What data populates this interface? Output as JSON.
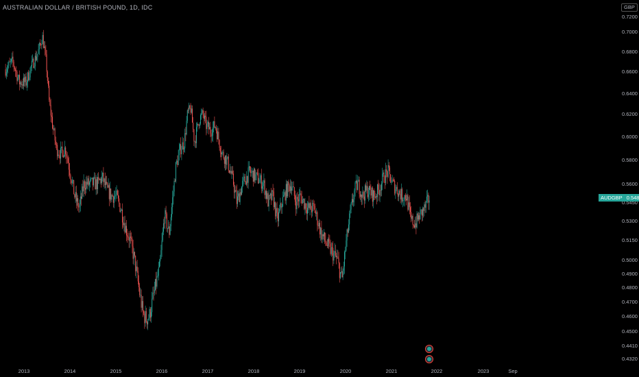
{
  "title": "AUSTRALIAN DOLLAR / BRITISH POUND, 1D, IDC",
  "currency_label": "GBP",
  "price_tag": {
    "symbol": "AUDGBP",
    "price": "0.5489"
  },
  "colors": {
    "up": "#26a69a",
    "down": "#ef5350",
    "background": "#000000",
    "axis_text": "#b2b5be",
    "tag_bg": "#26a69a"
  },
  "event_markers": [
    {
      "icon": "earnings-marker-icon"
    },
    {
      "icon": "dividend-marker-icon"
    }
  ],
  "chart_data": {
    "type": "candlestick",
    "title": "AUSTRALIAN DOLLAR / BRITISH POUND, 1D, IDC",
    "y_axis_side": "right",
    "ylim": [
      0.43,
      0.72
    ],
    "y_ticks": [
      "0.7200",
      "0.7000",
      "0.6800",
      "0.6600",
      "0.6400",
      "0.6200",
      "0.6000",
      "0.5800",
      "0.5600",
      "0.5450",
      "0.5300",
      "0.5150",
      "0.5000",
      "0.4900",
      "0.4800",
      "0.4700",
      "0.4600",
      "0.4500",
      "0.4410",
      "0.4320"
    ],
    "x_ticks": [
      "2013",
      "2014",
      "2015",
      "2016",
      "2017",
      "2018",
      "2019",
      "2020",
      "2021",
      "2022",
      "2023",
      "Sep"
    ],
    "last_price": 0.5489,
    "series": [
      {
        "name": "AUDGBP",
        "x": [
          2012.6,
          2012.75,
          2012.9,
          2013.05,
          2013.15,
          2013.3,
          2013.4,
          2013.48,
          2013.55,
          2013.62,
          2013.7,
          2013.8,
          2013.9,
          2014.0,
          2014.1,
          2014.2,
          2014.3,
          2014.45,
          2014.6,
          2014.7,
          2014.8,
          2014.9,
          2015.0,
          2015.1,
          2015.2,
          2015.3,
          2015.4,
          2015.5,
          2015.58,
          2015.65,
          2015.72,
          2015.85,
          2015.95,
          2016.05,
          2016.15,
          2016.3,
          2016.4,
          2016.48,
          2016.55,
          2016.62,
          2016.7,
          2016.8,
          2016.88,
          2016.95,
          2017.05,
          2017.15,
          2017.3,
          2017.4,
          2017.48,
          2017.55,
          2017.62,
          2017.75,
          2017.9,
          2018.05,
          2018.2,
          2018.3,
          2018.4,
          2018.5,
          2018.6,
          2018.7,
          2018.8,
          2018.9,
          2019.0,
          2019.15,
          2019.3,
          2019.45,
          2019.6,
          2019.7,
          2019.8,
          2019.9,
          2020.0,
          2020.1,
          2020.18,
          2020.25,
          2020.35,
          2020.45,
          2020.6,
          2020.7,
          2020.8,
          2020.9,
          2021.0,
          2021.1,
          2021.2,
          2021.3,
          2021.4,
          2021.5,
          2021.6,
          2021.7,
          2021.8
        ],
        "values": [
          0.662,
          0.67,
          0.65,
          0.65,
          0.664,
          0.678,
          0.695,
          0.67,
          0.63,
          0.61,
          0.59,
          0.585,
          0.59,
          0.57,
          0.55,
          0.54,
          0.56,
          0.56,
          0.56,
          0.565,
          0.555,
          0.55,
          0.55,
          0.54,
          0.525,
          0.515,
          0.5,
          0.478,
          0.462,
          0.458,
          0.46,
          0.48,
          0.495,
          0.535,
          0.52,
          0.575,
          0.59,
          0.595,
          0.62,
          0.625,
          0.595,
          0.615,
          0.62,
          0.61,
          0.605,
          0.61,
          0.585,
          0.58,
          0.57,
          0.56,
          0.545,
          0.56,
          0.57,
          0.565,
          0.56,
          0.545,
          0.55,
          0.53,
          0.545,
          0.555,
          0.56,
          0.545,
          0.55,
          0.54,
          0.54,
          0.52,
          0.51,
          0.505,
          0.5,
          0.485,
          0.515,
          0.54,
          0.555,
          0.56,
          0.55,
          0.555,
          0.55,
          0.555,
          0.565,
          0.57,
          0.56,
          0.555,
          0.55,
          0.55,
          0.53,
          0.528,
          0.535,
          0.54,
          0.5489
        ]
      }
    ]
  }
}
